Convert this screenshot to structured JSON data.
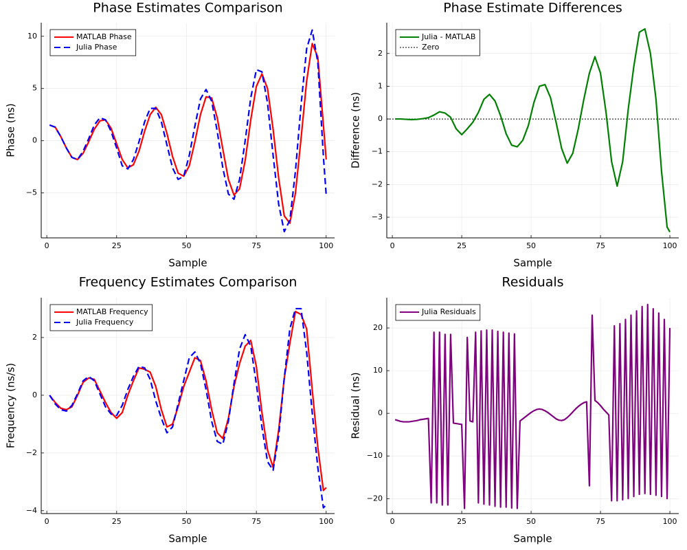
{
  "chart_data": [
    {
      "type": "line",
      "title": "Phase Estimates Comparison",
      "xlabel": "Sample",
      "ylabel": "Phase (ns)",
      "x": [
        1,
        3,
        5,
        7,
        9,
        11,
        13,
        15,
        17,
        19,
        21,
        23,
        25,
        27,
        29,
        31,
        33,
        35,
        37,
        39,
        41,
        43,
        45,
        47,
        49,
        51,
        53,
        55,
        57,
        59,
        61,
        63,
        65,
        67,
        69,
        71,
        73,
        75,
        77,
        79,
        81,
        83,
        85,
        87,
        89,
        91,
        93,
        95,
        97,
        99,
        100
      ],
      "xlim": [
        -2,
        103
      ],
      "xticks": [
        0,
        25,
        50,
        75,
        100
      ],
      "ylim": [
        -9.3,
        11.3
      ],
      "yticks": [
        {
          "value": -5,
          "label": "−5"
        },
        0,
        5,
        10
      ],
      "grid": true,
      "legend": "top-left",
      "series": [
        {
          "name": "MATLAB Phase",
          "color": "#ff0000",
          "style": "solid",
          "values": [
            1.5,
            1.3,
            0.4,
            -0.7,
            -1.6,
            -1.8,
            -1.2,
            -0.1,
            1.1,
            1.9,
            2.0,
            1.2,
            -0.3,
            -1.8,
            -2.6,
            -2.3,
            -1.0,
            0.9,
            2.5,
            3.2,
            2.5,
            0.7,
            -1.5,
            -3.1,
            -3.4,
            -2.4,
            -0.1,
            2.5,
            4.2,
            4.1,
            2.2,
            -0.8,
            -3.7,
            -5.2,
            -4.6,
            -1.9,
            2.0,
            5.2,
            6.4,
            5.0,
            1.1,
            -3.6,
            -7.2,
            -7.9,
            -5.0,
            0.2,
            5.7,
            9.3,
            8.0,
            1.5,
            -1.8
          ]
        },
        {
          "name": "Julia Phase",
          "color": "#0000ff",
          "style": "dashed",
          "values": [
            1.5,
            1.3,
            0.4,
            -0.7,
            -1.6,
            -1.8,
            -1.0,
            0.2,
            1.5,
            2.2,
            2.0,
            0.9,
            -0.7,
            -2.4,
            -2.7,
            -1.8,
            -0.1,
            1.8,
            3.1,
            3.1,
            1.8,
            -0.4,
            -2.6,
            -3.7,
            -3.4,
            -1.4,
            1.4,
            4.0,
            4.9,
            3.8,
            0.9,
            -2.6,
            -5.1,
            -5.6,
            -3.7,
            0,
            4.1,
            6.8,
            6.6,
            3.6,
            -1.4,
            -6.1,
            -8.7,
            -7.6,
            -2.9,
            3.4,
            8.8,
            10.6,
            7.5,
            -1.5,
            -5.2
          ]
        }
      ]
    },
    {
      "type": "line",
      "title": "Phase Estimate Differences",
      "xlabel": "Sample",
      "ylabel": "Difference (ns)",
      "x": [
        1,
        3,
        5,
        7,
        9,
        11,
        13,
        15,
        17,
        19,
        21,
        23,
        25,
        27,
        29,
        31,
        33,
        35,
        37,
        39,
        41,
        43,
        45,
        47,
        49,
        51,
        53,
        55,
        57,
        59,
        61,
        63,
        65,
        67,
        69,
        71,
        73,
        75,
        77,
        79,
        81,
        83,
        85,
        87,
        89,
        91,
        93,
        95,
        97,
        99,
        100
      ],
      "xlim": [
        -2,
        103.2
      ],
      "xticks": [
        0,
        25,
        50,
        75,
        100
      ],
      "ylim": [
        -3.63,
        2.94
      ],
      "yticks": [
        {
          "value": -3,
          "label": "−3"
        },
        {
          "value": -2,
          "label": "−2"
        },
        {
          "value": -1,
          "label": "−1"
        },
        0,
        1,
        2
      ],
      "grid": true,
      "legend": "top-left",
      "series": [
        {
          "name": "Julia - MATLAB",
          "color": "#008000",
          "style": "solid",
          "values": [
            0,
            0,
            -0.01,
            -0.02,
            -0.01,
            0.01,
            0.04,
            0.12,
            0.22,
            0.18,
            0.05,
            -0.3,
            -0.48,
            -0.3,
            -0.1,
            0.2,
            0.6,
            0.75,
            0.55,
            0.1,
            -0.45,
            -0.8,
            -0.85,
            -0.65,
            -0.2,
            0.5,
            1.0,
            1.05,
            0.65,
            -0.1,
            -0.9,
            -1.35,
            -1.05,
            -0.3,
            0.6,
            1.4,
            1.9,
            1.4,
            0.2,
            -1.3,
            -2.05,
            -1.3,
            0.3,
            1.6,
            2.65,
            2.75,
            2.0,
            0.6,
            -1.6,
            -3.3,
            -3.45
          ]
        }
      ],
      "hlines": [
        {
          "name": "Zero",
          "value": 0,
          "color": "#000000",
          "style": "dotted"
        }
      ]
    },
    {
      "type": "line",
      "title": "Frequency Estimates Comparison",
      "xlabel": "Sample",
      "ylabel": "Frequency (ns/s)",
      "x": [
        1,
        3,
        5,
        7,
        9,
        11,
        13,
        15,
        17,
        19,
        21,
        23,
        25,
        27,
        29,
        31,
        33,
        35,
        37,
        39,
        41,
        43,
        45,
        47,
        49,
        51,
        53,
        55,
        57,
        59,
        61,
        63,
        65,
        67,
        69,
        71,
        73,
        75,
        77,
        79,
        81,
        83,
        85,
        87,
        89,
        91,
        93,
        95,
        97,
        99,
        100
      ],
      "xlim": [
        -2,
        103
      ],
      "xticks": [
        0,
        25,
        50,
        75,
        100
      ],
      "ylim": [
        -4.1,
        3.38
      ],
      "yticks": [
        {
          "value": -4,
          "label": "−4"
        },
        {
          "value": -2,
          "label": "−2"
        },
        0,
        2
      ],
      "grid": true,
      "legend": "top-left",
      "series": [
        {
          "name": "MATLAB Frequency",
          "color": "#ff0000",
          "style": "solid",
          "values": [
            0,
            -0.25,
            -0.45,
            -0.5,
            -0.4,
            0,
            0.45,
            0.6,
            0.55,
            0.15,
            -0.25,
            -0.6,
            -0.8,
            -0.6,
            0,
            0.5,
            0.95,
            0.9,
            0.8,
            0.3,
            -0.5,
            -1.1,
            -1.0,
            -0.4,
            0.3,
            0.8,
            1.3,
            1.2,
            0.5,
            -0.5,
            -1.3,
            -1.5,
            -0.8,
            0.3,
            1.1,
            1.7,
            1.9,
            1.0,
            -0.6,
            -1.9,
            -2.5,
            -1.2,
            0.6,
            1.8,
            2.9,
            2.8,
            2.3,
            0.2,
            -1.8,
            -3.3,
            -3.2
          ]
        },
        {
          "name": "Julia Frequency",
          "color": "#0000ff",
          "style": "dashed",
          "values": [
            0,
            -0.3,
            -0.5,
            -0.55,
            -0.35,
            0.05,
            0.5,
            0.65,
            0.5,
            0.05,
            -0.4,
            -0.65,
            -0.7,
            -0.35,
            0.2,
            0.65,
            1.0,
            0.95,
            0.55,
            -0.2,
            -0.8,
            -1.3,
            -1.1,
            -0.3,
            0.5,
            1.3,
            1.5,
            1.1,
            0.2,
            -0.9,
            -1.6,
            -1.7,
            -0.9,
            0.4,
            1.6,
            2.1,
            1.7,
            0.4,
            -1.1,
            -2.3,
            -2.6,
            -1.4,
            0.6,
            2.3,
            3.0,
            3.0,
            1.5,
            -0.6,
            -2.5,
            -3.9,
            -3.8
          ]
        }
      ]
    },
    {
      "type": "line",
      "title": "Residuals",
      "xlabel": "Sample",
      "ylabel": "Residual (ns)",
      "x": [
        1,
        2,
        3,
        4,
        5,
        6,
        7,
        8,
        9,
        10,
        11,
        12,
        13,
        14,
        15,
        16,
        17,
        18,
        19,
        20,
        21,
        22,
        23,
        24,
        25,
        26,
        27,
        28,
        29,
        30,
        31,
        32,
        33,
        34,
        35,
        36,
        37,
        38,
        39,
        40,
        41,
        42,
        43,
        44,
        45,
        46,
        47,
        48,
        49,
        50,
        51,
        52,
        53,
        54,
        55,
        56,
        57,
        58,
        59,
        60,
        61,
        62,
        63,
        64,
        65,
        66,
        67,
        68,
        69,
        70,
        71,
        72,
        73,
        74,
        75,
        76,
        77,
        78,
        79,
        80,
        81,
        82,
        83,
        84,
        85,
        86,
        87,
        88,
        89,
        90,
        91,
        92,
        93,
        94,
        95,
        96,
        97,
        98,
        99,
        100
      ],
      "xlim": [
        -2,
        103.2
      ],
      "xticks": [
        0,
        25,
        50,
        75,
        100
      ],
      "ylim": [
        -23.5,
        27.1
      ],
      "yticks": [
        {
          "value": -20,
          "label": "−20"
        },
        {
          "value": -10,
          "label": "−10"
        },
        0,
        10,
        20
      ],
      "grid": true,
      "legend": "top-left",
      "series": [
        {
          "name": "Julia Residuals",
          "color": "#800080",
          "style": "solid",
          "values": [
            -1.5,
            -1.7,
            -1.9,
            -2.0,
            -2.0,
            -2.0,
            -1.9,
            -1.8,
            -1.7,
            -1.5,
            -1.4,
            -1.3,
            -1.2,
            -21,
            19,
            -21,
            19,
            -21.5,
            18.5,
            -21.5,
            18.5,
            -2.3,
            -2.4,
            -2.5,
            -2.6,
            -22.3,
            17.8,
            -1.8,
            -2.0,
            19,
            -21,
            19.3,
            -21.3,
            19.5,
            -21.5,
            19.5,
            -21.8,
            19.2,
            -22,
            19,
            -22,
            18.8,
            -22.2,
            18.6,
            -22.3,
            -1.8,
            -1.3,
            -0.8,
            -0.3,
            0.2,
            0.6,
            0.9,
            1.0,
            0.9,
            0.6,
            0.2,
            -0.3,
            -0.8,
            -1.3,
            -1.6,
            -1.7,
            -1.5,
            -1.0,
            -0.4,
            0.3,
            1.0,
            1.6,
            2.1,
            2.5,
            2.7,
            -17,
            23,
            3,
            2.5,
            1.8,
            1.0,
            0.3,
            -0.4,
            -20.5,
            20.5,
            -20.5,
            21,
            -20.3,
            22,
            -20,
            23,
            -19.5,
            24,
            -19,
            25,
            -18.8,
            25.5,
            -19,
            24.5,
            -19.2,
            23.5,
            -19.5,
            22,
            -20,
            20
          ]
        }
      ]
    }
  ]
}
